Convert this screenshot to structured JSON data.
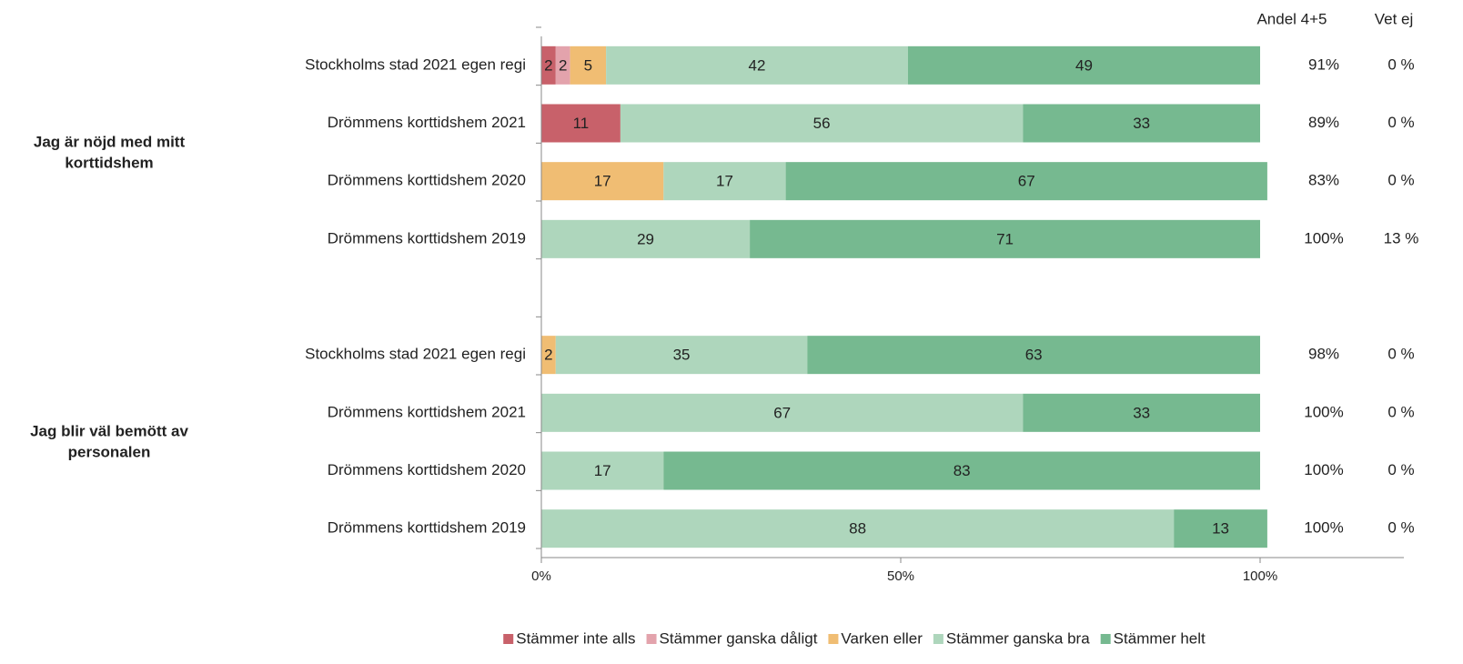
{
  "chart_data": {
    "type": "stacked_barh",
    "categories": [
      "Stockholms stad 2021 egen regi",
      "Drömmens korttidshem 2021",
      "Drömmens korttidshem 2020",
      "Drömmens korttidshem 2019",
      null,
      "Stockholms stad 2021 egen regi",
      "Drömmens korttidshem 2021",
      "Drömmens korttidshem 2020",
      "Drömmens korttidshem 2019"
    ],
    "groups": [
      {
        "label": [
          "Jag är nöjd med mitt",
          "korttidshem"
        ]
      },
      {
        "label": [
          "Jag blir väl bemött av",
          "personalen"
        ]
      }
    ],
    "series": [
      {
        "name": "Stämmer inte alls",
        "color": "#c8616a",
        "values": [
          2,
          11,
          null,
          null,
          null,
          null,
          null,
          null,
          null
        ]
      },
      {
        "name": "Stämmer ganska dåligt",
        "color": "#e3a3ac",
        "values": [
          2,
          null,
          null,
          null,
          null,
          null,
          null,
          null,
          null
        ]
      },
      {
        "name": "Varken eller",
        "color": "#f0bd73",
        "values": [
          5,
          null,
          17,
          null,
          null,
          2,
          null,
          null,
          null
        ]
      },
      {
        "name": "Stämmer ganska bra",
        "color": "#aed6bc",
        "values": [
          42,
          56,
          17,
          29,
          null,
          35,
          67,
          17,
          88
        ]
      },
      {
        "name": "Stämmer helt",
        "color": "#76b990",
        "values": [
          49,
          33,
          67,
          71,
          null,
          63,
          33,
          83,
          13
        ]
      }
    ],
    "columns": [
      {
        "name": "Andel 4+5",
        "labels": [
          "91%",
          "89%",
          "83%",
          "100%",
          null,
          "98%",
          "100%",
          "100%",
          "100%"
        ]
      },
      {
        "name": "Vet ej",
        "labels": [
          "0 %",
          "0 %",
          "0 %",
          "13 %",
          null,
          "0 %",
          "0 %",
          "0 %",
          "0 %"
        ]
      }
    ],
    "xlim": [
      0,
      100
    ],
    "xticks": [
      {
        "value": 0,
        "label": "0%"
      },
      {
        "value": 50,
        "label": "50%"
      },
      {
        "value": 100,
        "label": "100%"
      }
    ]
  }
}
